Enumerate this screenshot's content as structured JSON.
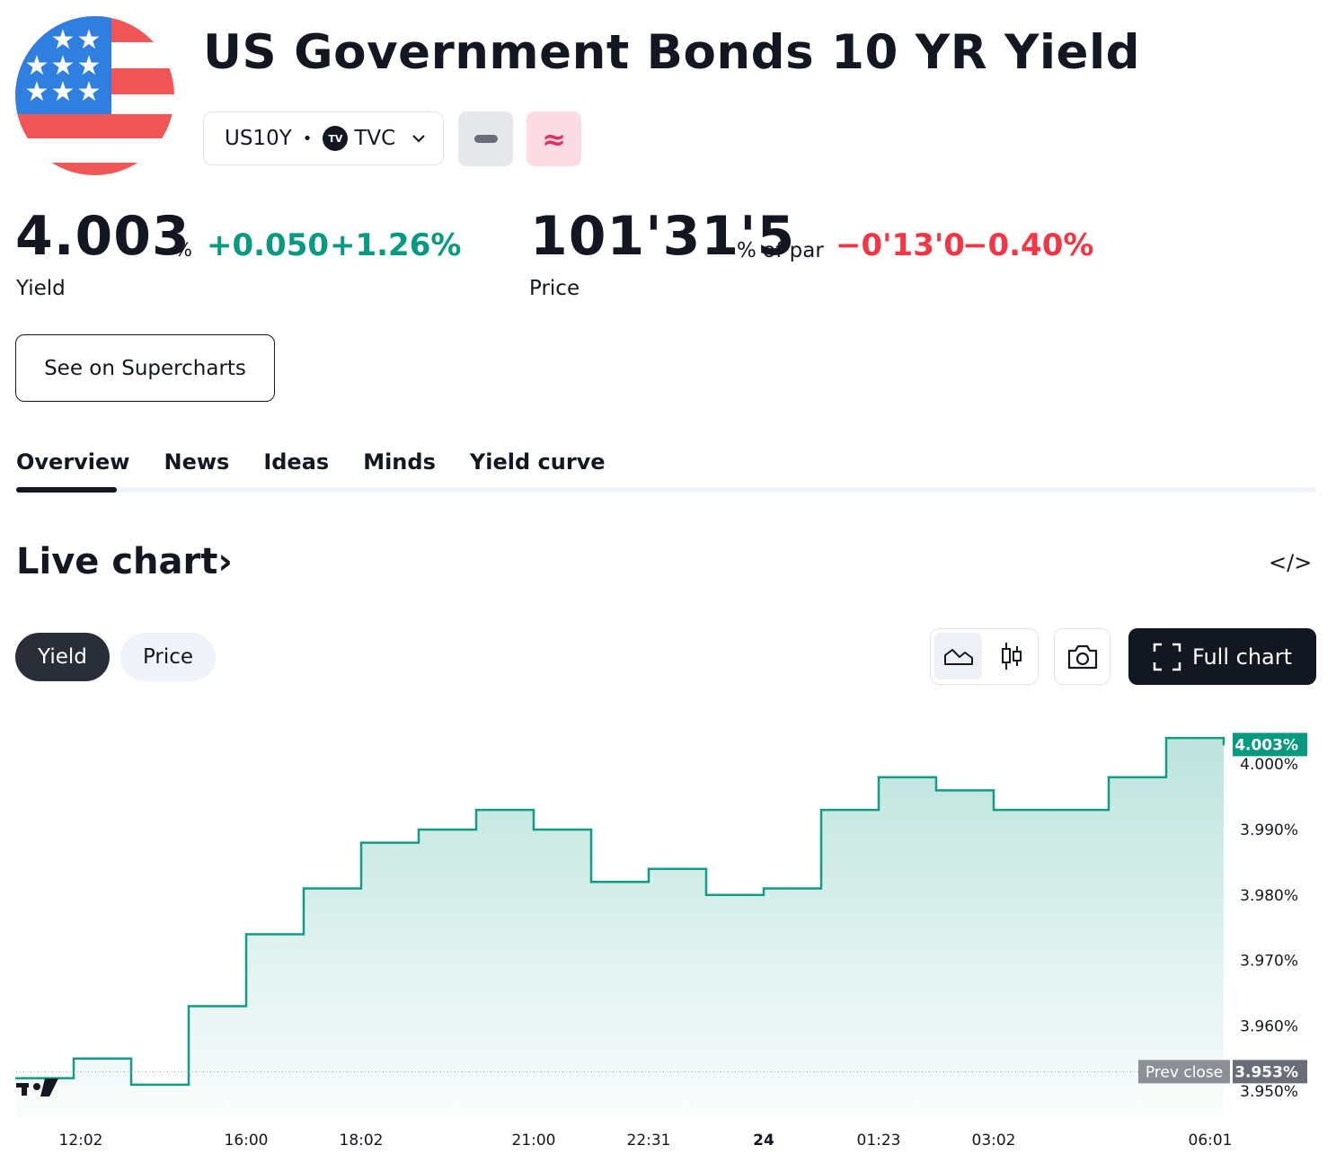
{
  "header": {
    "title": "US Government Bonds 10 YR Yield",
    "symbol": "US10Y",
    "separator": "•",
    "exchange_badge": "TV",
    "exchange": "TVC",
    "neutral_icon": "minus-icon",
    "approx_symbol": "≈"
  },
  "yield_quote": {
    "value": "4.003",
    "unit": "%",
    "change": "+0.050",
    "change_pct": "+1.26%",
    "label": "Yield"
  },
  "price_quote": {
    "value": "101'31'5",
    "unit": "% of par",
    "change": "−0'13'0",
    "change_pct": "−0.40%",
    "label": "Price"
  },
  "supercharts_label": "See on Supercharts",
  "tabs": [
    {
      "label": "Overview",
      "active": true
    },
    {
      "label": "News"
    },
    {
      "label": "Ideas"
    },
    {
      "label": "Minds"
    },
    {
      "label": "Yield curve"
    }
  ],
  "live_chart": {
    "title": "Live chart",
    "title_chevron": "›",
    "embed_icon": "</>",
    "mode_buttons": [
      "Yield",
      "Price"
    ],
    "active_mode": "Yield",
    "full_chart_label": "Full chart",
    "icons": [
      "area-chart-icon",
      "candles-icon",
      "camera-icon",
      "fullscreen-icon"
    ]
  },
  "colors": {
    "up": "#089981",
    "down": "#f23645",
    "line": "#139c84",
    "prev_close_tag": "#8c8f96",
    "flag_red": "#f05656",
    "flag_blue": "#2f7fe0"
  },
  "chart_data": {
    "type": "area",
    "series": [
      {
        "x": [
          "12:02",
          "13:00",
          "14:00",
          "15:00",
          "16:00",
          "17:00",
          "18:02",
          "19:00",
          "20:00",
          "21:00",
          "22:00",
          "22:31",
          "23:30",
          "24",
          "00:30",
          "01:23",
          "02:00",
          "03:02",
          "04:00",
          "05:00",
          "05:30",
          "06:01"
        ],
        "values": [
          3.952,
          3.955,
          3.951,
          3.963,
          3.974,
          3.981,
          3.988,
          3.99,
          3.993,
          3.99,
          3.982,
          3.984,
          3.98,
          3.981,
          3.993,
          3.998,
          3.996,
          3.993,
          3.993,
          3.998,
          4.004,
          4.003
        ]
      }
    ],
    "x_tick_labels": [
      "12:02",
      "16:00",
      "18:02",
      "21:00",
      "22:31",
      "24",
      "01:23",
      "03:02",
      "06:01"
    ],
    "y_tick_labels": [
      "4.000%",
      "3.990%",
      "3.980%",
      "3.970%",
      "3.960%",
      "3.950%"
    ],
    "y_ticks": [
      4.0,
      3.99,
      3.98,
      3.97,
      3.96,
      3.95
    ],
    "ylim": [
      3.947,
      4.008
    ],
    "last_value_label": "4.003%",
    "last_value": 4.003,
    "prev_close_label": "Prev close",
    "prev_close_value_label": "3.953%",
    "prev_close": 3.953,
    "grid": false
  }
}
